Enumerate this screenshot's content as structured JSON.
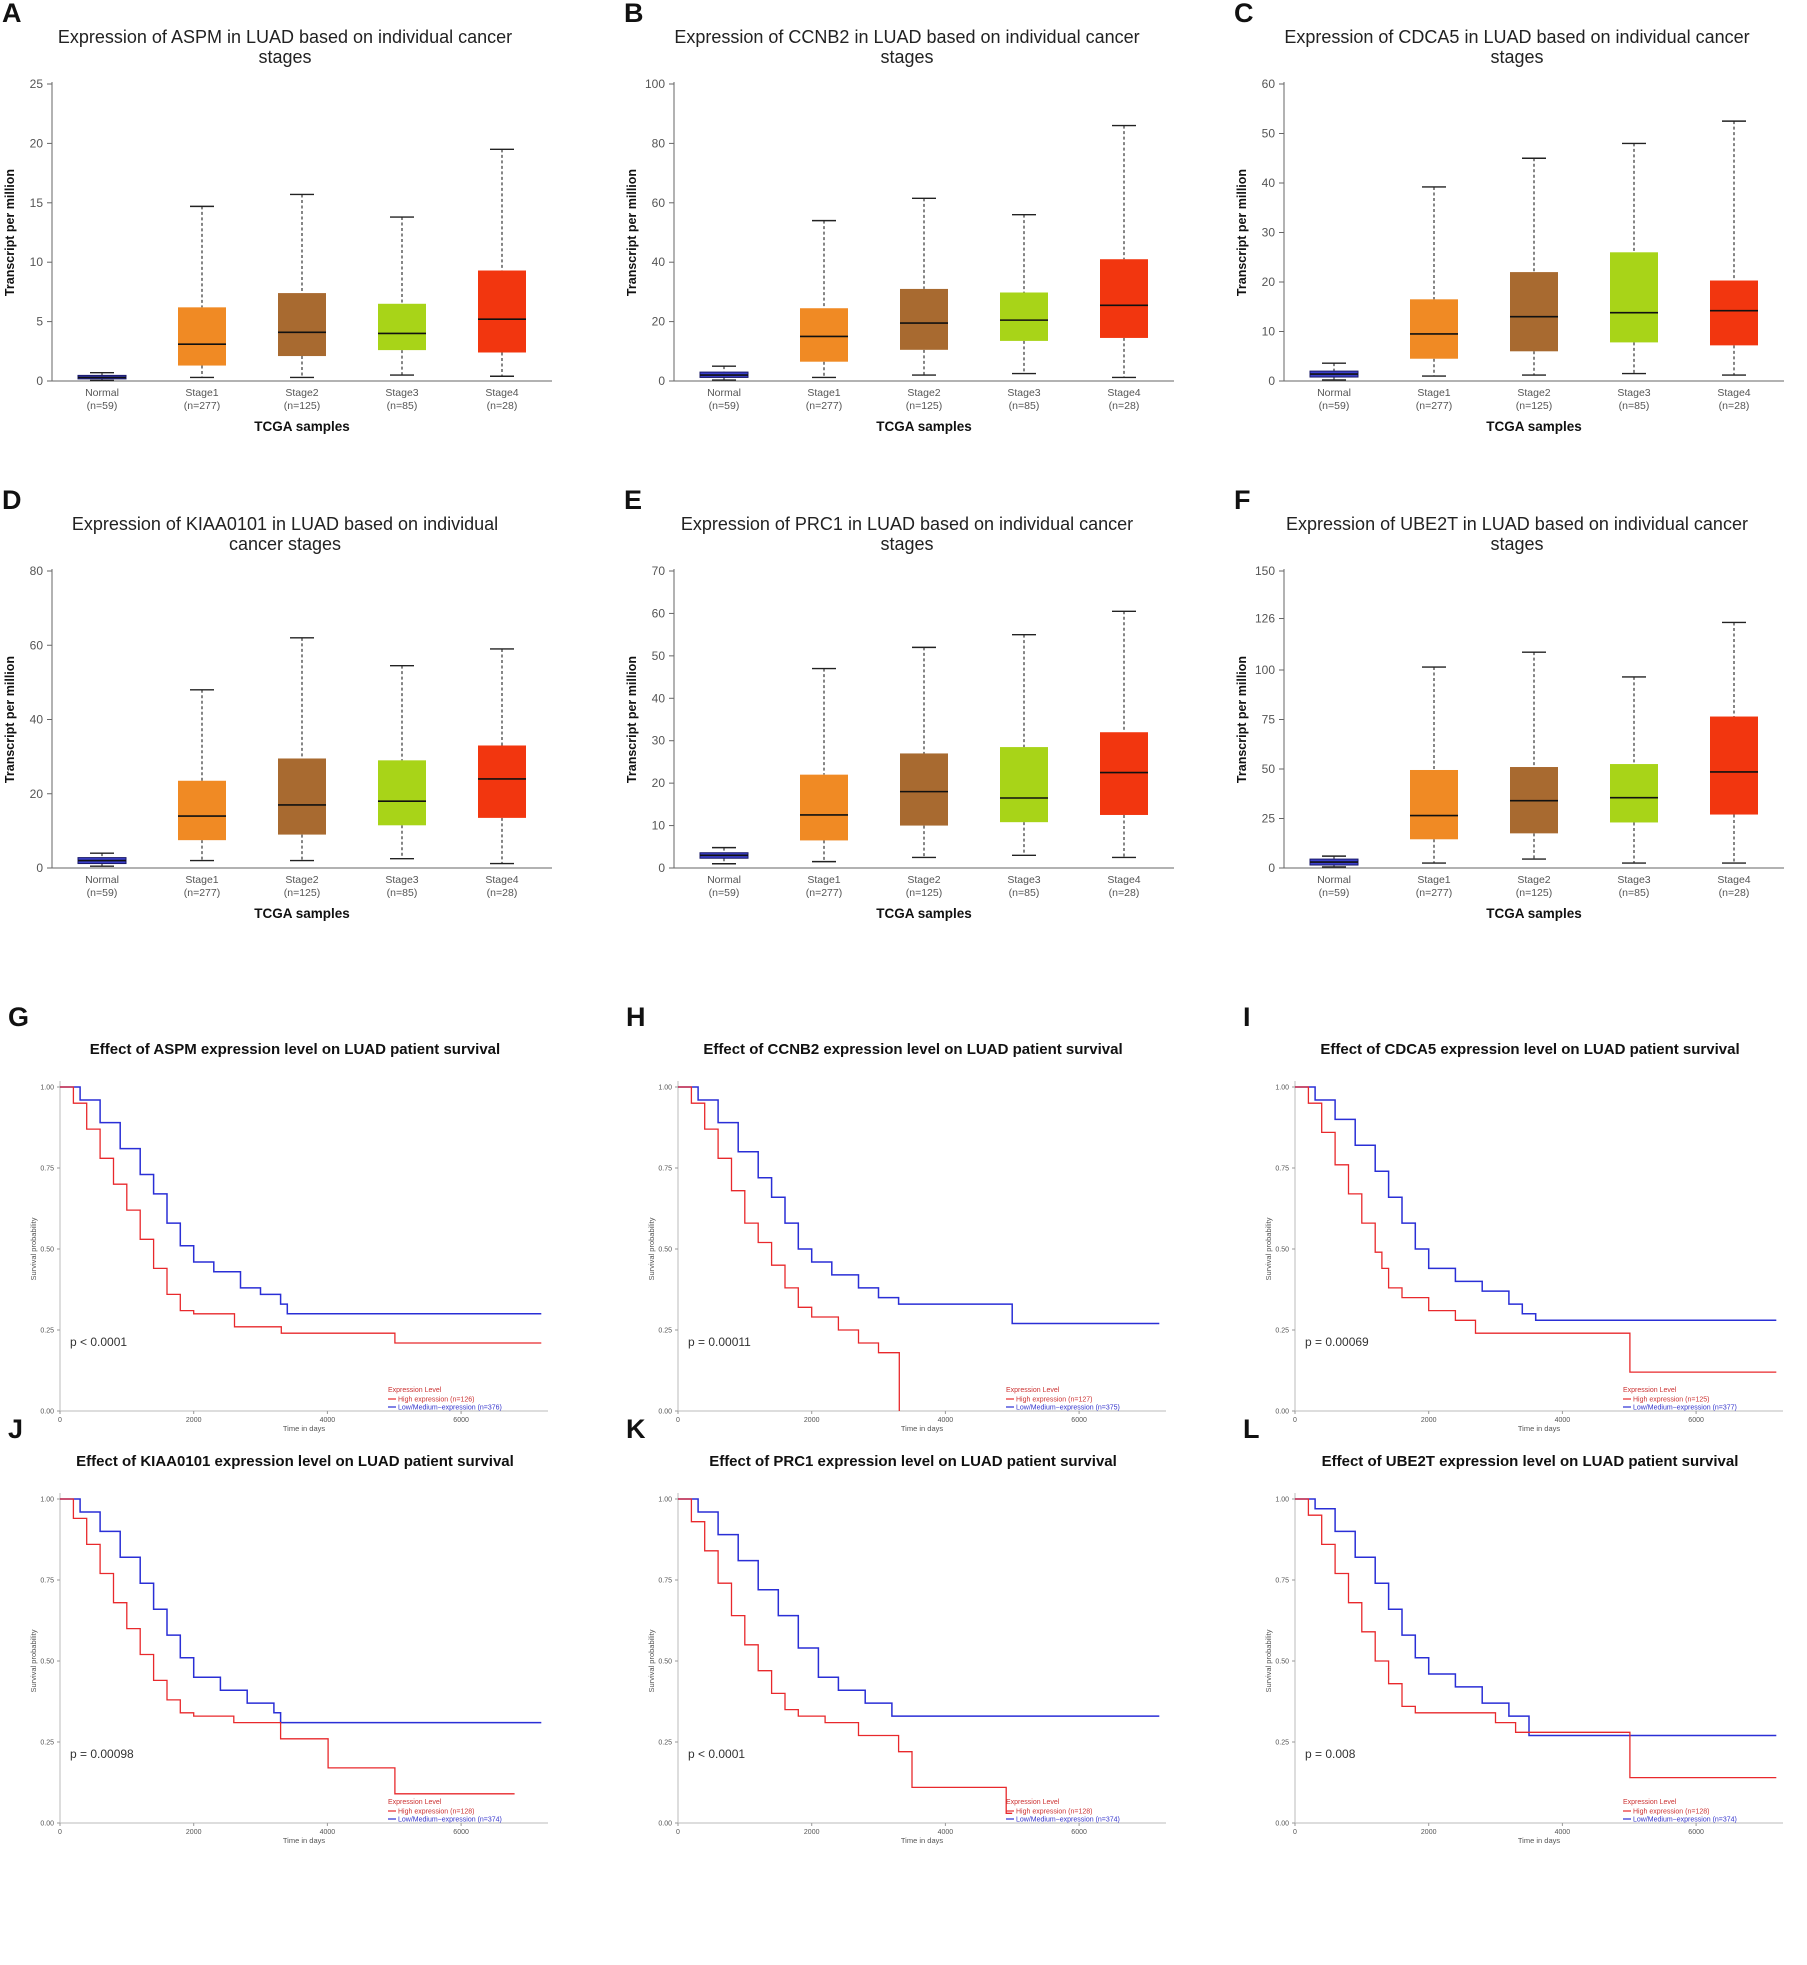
{
  "box_meta": {
    "categories": [
      "Normal",
      "Stage1",
      "Stage2",
      "Stage3",
      "Stage4"
    ],
    "counts": [
      "(n=59)",
      "(n=277)",
      "(n=125)",
      "(n=85)",
      "(n=28)"
    ],
    "colors": [
      "#3B3FC9",
      "#F08A24",
      "#A86A30",
      "#A8D418",
      "#F2360F"
    ],
    "xlabel": "TCGA samples",
    "ylabel": "Transcript per million"
  },
  "km_meta": {
    "xlabel": "Time in days",
    "ylabel": "Survival probability",
    "legend_title": "Expression Level",
    "high_color": "#E8292C",
    "low_color": "#2A2FD6",
    "xticks": [
      0,
      2000,
      4000,
      6000
    ],
    "yticks": [
      "0.00",
      "0.25",
      "0.50",
      "0.75",
      "1.00"
    ]
  },
  "chart_data": [
    {
      "panel": "A",
      "type": "box",
      "title": [
        "Expression of ASPM in LUAD based on individual cancer",
        "stages"
      ],
      "ylim": [
        0,
        25
      ],
      "yticks": [
        0,
        5,
        10,
        15,
        20,
        25
      ],
      "boxes": [
        {
          "min": 0.05,
          "q1": 0.2,
          "median": 0.3,
          "q3": 0.45,
          "max": 0.7
        },
        {
          "min": 0.3,
          "q1": 1.3,
          "median": 3.1,
          "q3": 6.2,
          "max": 14.7
        },
        {
          "min": 0.3,
          "q1": 2.1,
          "median": 4.1,
          "q3": 7.4,
          "max": 15.7
        },
        {
          "min": 0.5,
          "q1": 2.6,
          "median": 4.0,
          "q3": 6.5,
          "max": 13.8
        },
        {
          "min": 0.4,
          "q1": 2.4,
          "median": 5.2,
          "q3": 9.3,
          "max": 19.5
        }
      ]
    },
    {
      "panel": "B",
      "type": "box",
      "title": [
        "Expression of CCNB2 in LUAD based on individual cancer",
        "stages"
      ],
      "ylim": [
        0,
        100
      ],
      "yticks": [
        0,
        20,
        40,
        60,
        80,
        100
      ],
      "boxes": [
        {
          "min": 0.3,
          "q1": 1.2,
          "median": 2.0,
          "q3": 3.0,
          "max": 5.0
        },
        {
          "min": 1.2,
          "q1": 6.5,
          "median": 15.0,
          "q3": 24.5,
          "max": 54.0
        },
        {
          "min": 2.0,
          "q1": 10.5,
          "median": 19.5,
          "q3": 31.0,
          "max": 61.5
        },
        {
          "min": 2.5,
          "q1": 13.5,
          "median": 20.5,
          "q3": 29.8,
          "max": 56.0
        },
        {
          "min": 1.2,
          "q1": 14.5,
          "median": 25.5,
          "q3": 41.0,
          "max": 86.0
        }
      ]
    },
    {
      "panel": "C",
      "type": "box",
      "title": [
        "Expression of CDCA5 in LUAD based on individual cancer",
        "stages"
      ],
      "ylim": [
        0,
        60
      ],
      "yticks": [
        0,
        10,
        20,
        30,
        40,
        50,
        60
      ],
      "boxes": [
        {
          "min": 0.2,
          "q1": 0.8,
          "median": 1.4,
          "q3": 2.0,
          "max": 3.6
        },
        {
          "min": 1.0,
          "q1": 4.5,
          "median": 9.5,
          "q3": 16.5,
          "max": 39.2
        },
        {
          "min": 1.2,
          "q1": 6.0,
          "median": 13.0,
          "q3": 22.0,
          "max": 45.0
        },
        {
          "min": 1.5,
          "q1": 7.8,
          "median": 13.8,
          "q3": 26.0,
          "max": 48.0
        },
        {
          "min": 1.2,
          "q1": 7.2,
          "median": 14.2,
          "q3": 20.3,
          "max": 52.5
        }
      ]
    },
    {
      "panel": "D",
      "type": "box",
      "title": [
        "Expression of KIAA0101 in LUAD based on individual",
        "cancer stages"
      ],
      "ylim": [
        0,
        80
      ],
      "yticks": [
        0,
        20,
        40,
        60,
        80
      ],
      "boxes": [
        {
          "min": 0.5,
          "q1": 1.2,
          "median": 2.0,
          "q3": 2.8,
          "max": 4.0
        },
        {
          "min": 2.0,
          "q1": 7.5,
          "median": 14.0,
          "q3": 23.5,
          "max": 48.0
        },
        {
          "min": 2.0,
          "q1": 9.0,
          "median": 17.0,
          "q3": 29.5,
          "max": 62.0
        },
        {
          "min": 2.5,
          "q1": 11.5,
          "median": 18.0,
          "q3": 29.0,
          "max": 54.5
        },
        {
          "min": 1.2,
          "q1": 13.5,
          "median": 24.0,
          "q3": 33.0,
          "max": 59.0
        }
      ]
    },
    {
      "panel": "E",
      "type": "box",
      "title": [
        "Expression of PRC1 in LUAD based on individual cancer",
        "stages"
      ],
      "ylim": [
        0,
        70
      ],
      "yticks": [
        0,
        10,
        20,
        30,
        40,
        50,
        60,
        70
      ],
      "boxes": [
        {
          "min": 1.0,
          "q1": 2.3,
          "median": 3.0,
          "q3": 3.6,
          "max": 4.8
        },
        {
          "min": 1.5,
          "q1": 6.5,
          "median": 12.5,
          "q3": 22.0,
          "max": 47.0
        },
        {
          "min": 2.5,
          "q1": 10.0,
          "median": 18.0,
          "q3": 27.0,
          "max": 52.0
        },
        {
          "min": 3.0,
          "q1": 10.8,
          "median": 16.5,
          "q3": 28.5,
          "max": 55.0
        },
        {
          "min": 2.5,
          "q1": 12.5,
          "median": 22.5,
          "q3": 32.0,
          "max": 60.5
        }
      ]
    },
    {
      "panel": "F",
      "type": "box",
      "title": [
        "Expression of UBE2T in LUAD based on individual cancer",
        "stages"
      ],
      "ylim": [
        0,
        150
      ],
      "yticks": [
        0,
        25,
        50,
        75,
        100,
        126,
        150
      ],
      "boxes": [
        {
          "min": 0.5,
          "q1": 1.5,
          "median": 3.0,
          "q3": 4.5,
          "max": 6.0
        },
        {
          "min": 2.5,
          "q1": 14.5,
          "median": 26.5,
          "q3": 49.5,
          "max": 101.5
        },
        {
          "min": 4.5,
          "q1": 17.5,
          "median": 34.0,
          "q3": 51.0,
          "max": 109.0
        },
        {
          "min": 2.5,
          "q1": 23.0,
          "median": 35.5,
          "q3": 52.5,
          "max": 96.5
        },
        {
          "min": 2.5,
          "q1": 27.0,
          "median": 48.5,
          "q3": 76.5,
          "max": 124.0
        }
      ]
    },
    {
      "panel": "G",
      "type": "line",
      "title": "Effect of ASPM expression level on LUAD patient survival",
      "pvalue": "p < 0.0001",
      "xlim": [
        0,
        7300
      ],
      "ylim": [
        0,
        1
      ],
      "high_label": "High expression (n=126)",
      "low_label": "Low/Medium−expression (n=376)",
      "high": [
        [
          0,
          1.0
        ],
        [
          200,
          0.95
        ],
        [
          400,
          0.87
        ],
        [
          600,
          0.78
        ],
        [
          800,
          0.7
        ],
        [
          1000,
          0.62
        ],
        [
          1200,
          0.53
        ],
        [
          1400,
          0.44
        ],
        [
          1600,
          0.36
        ],
        [
          1800,
          0.31
        ],
        [
          2000,
          0.3
        ],
        [
          2600,
          0.3
        ],
        [
          2610,
          0.26
        ],
        [
          3300,
          0.26
        ],
        [
          3310,
          0.24
        ],
        [
          5000,
          0.24
        ],
        [
          5010,
          0.21
        ],
        [
          7200,
          0.21
        ]
      ],
      "low": [
        [
          0,
          1.0
        ],
        [
          300,
          0.96
        ],
        [
          600,
          0.89
        ],
        [
          900,
          0.81
        ],
        [
          1200,
          0.73
        ],
        [
          1400,
          0.67
        ],
        [
          1600,
          0.58
        ],
        [
          1800,
          0.51
        ],
        [
          2000,
          0.46
        ],
        [
          2300,
          0.43
        ],
        [
          2700,
          0.38
        ],
        [
          3000,
          0.36
        ],
        [
          3300,
          0.33
        ],
        [
          3400,
          0.3
        ],
        [
          7200,
          0.3
        ]
      ]
    },
    {
      "panel": "H",
      "type": "line",
      "title": "Effect of CCNB2 expression level on LUAD patient survival",
      "pvalue": "p = 0.00011",
      "xlim": [
        0,
        7300
      ],
      "ylim": [
        0,
        1
      ],
      "high_label": "High expression (n=127)",
      "low_label": "Low/Medium−expression (n=375)",
      "high": [
        [
          0,
          1.0
        ],
        [
          200,
          0.95
        ],
        [
          400,
          0.87
        ],
        [
          600,
          0.78
        ],
        [
          800,
          0.68
        ],
        [
          1000,
          0.58
        ],
        [
          1200,
          0.52
        ],
        [
          1400,
          0.45
        ],
        [
          1600,
          0.38
        ],
        [
          1800,
          0.32
        ],
        [
          2000,
          0.29
        ],
        [
          2300,
          0.29
        ],
        [
          2400,
          0.25
        ],
        [
          2700,
          0.21
        ],
        [
          3000,
          0.18
        ],
        [
          3300,
          0.18
        ],
        [
          3310,
          0.0
        ]
      ],
      "low": [
        [
          0,
          1.0
        ],
        [
          300,
          0.96
        ],
        [
          600,
          0.89
        ],
        [
          900,
          0.8
        ],
        [
          1200,
          0.72
        ],
        [
          1400,
          0.66
        ],
        [
          1600,
          0.58
        ],
        [
          1800,
          0.5
        ],
        [
          2000,
          0.46
        ],
        [
          2300,
          0.42
        ],
        [
          2700,
          0.38
        ],
        [
          3000,
          0.35
        ],
        [
          3300,
          0.33
        ],
        [
          4900,
          0.33
        ],
        [
          5000,
          0.27
        ],
        [
          7200,
          0.27
        ]
      ]
    },
    {
      "panel": "I",
      "type": "line",
      "title": "Effect of CDCA5 expression level on LUAD patient survival",
      "pvalue": "p = 0.00069",
      "xlim": [
        0,
        7300
      ],
      "ylim": [
        0,
        1
      ],
      "high_label": "High expression (n=125)",
      "low_label": "Low/Medium−expression (n=377)",
      "high": [
        [
          0,
          1.0
        ],
        [
          200,
          0.95
        ],
        [
          400,
          0.86
        ],
        [
          600,
          0.76
        ],
        [
          800,
          0.67
        ],
        [
          1000,
          0.58
        ],
        [
          1200,
          0.49
        ],
        [
          1300,
          0.44
        ],
        [
          1400,
          0.38
        ],
        [
          1600,
          0.35
        ],
        [
          2000,
          0.31
        ],
        [
          2400,
          0.28
        ],
        [
          2700,
          0.24
        ],
        [
          3200,
          0.24
        ],
        [
          5000,
          0.24
        ],
        [
          5010,
          0.12
        ],
        [
          7200,
          0.12
        ]
      ],
      "low": [
        [
          0,
          1.0
        ],
        [
          300,
          0.96
        ],
        [
          600,
          0.9
        ],
        [
          900,
          0.82
        ],
        [
          1200,
          0.74
        ],
        [
          1400,
          0.66
        ],
        [
          1600,
          0.58
        ],
        [
          1800,
          0.5
        ],
        [
          2000,
          0.44
        ],
        [
          2400,
          0.4
        ],
        [
          2800,
          0.37
        ],
        [
          3200,
          0.33
        ],
        [
          3400,
          0.3
        ],
        [
          3600,
          0.28
        ],
        [
          7200,
          0.28
        ]
      ]
    },
    {
      "panel": "J",
      "type": "line",
      "title": "Effect of KIAA0101 expression level on LUAD patient survival",
      "pvalue": "p = 0.00098",
      "xlim": [
        0,
        7300
      ],
      "ylim": [
        0,
        1
      ],
      "high_label": "High expression (n=128)",
      "low_label": "Low/Medium−expression (n=374)",
      "high": [
        [
          0,
          1.0
        ],
        [
          200,
          0.94
        ],
        [
          400,
          0.86
        ],
        [
          600,
          0.77
        ],
        [
          800,
          0.68
        ],
        [
          1000,
          0.6
        ],
        [
          1200,
          0.52
        ],
        [
          1400,
          0.44
        ],
        [
          1600,
          0.38
        ],
        [
          1800,
          0.34
        ],
        [
          2000,
          0.33
        ],
        [
          2600,
          0.31
        ],
        [
          3300,
          0.26
        ],
        [
          4000,
          0.26
        ],
        [
          4010,
          0.17
        ],
        [
          5000,
          0.17
        ],
        [
          5010,
          0.09
        ],
        [
          6800,
          0.09
        ]
      ],
      "low": [
        [
          0,
          1.0
        ],
        [
          300,
          0.96
        ],
        [
          600,
          0.9
        ],
        [
          900,
          0.82
        ],
        [
          1200,
          0.74
        ],
        [
          1400,
          0.66
        ],
        [
          1600,
          0.58
        ],
        [
          1800,
          0.51
        ],
        [
          2000,
          0.45
        ],
        [
          2400,
          0.41
        ],
        [
          2800,
          0.37
        ],
        [
          3200,
          0.34
        ],
        [
          3300,
          0.31
        ],
        [
          7200,
          0.31
        ]
      ]
    },
    {
      "panel": "K",
      "type": "line",
      "title": "Effect of PRC1 expression level on LUAD patient survival",
      "pvalue": "p < 0.0001",
      "xlim": [
        0,
        7300
      ],
      "ylim": [
        0,
        1
      ],
      "high_label": "High expression (n=128)",
      "low_label": "Low/Medium−expression (n=374)",
      "high": [
        [
          0,
          1.0
        ],
        [
          200,
          0.93
        ],
        [
          400,
          0.84
        ],
        [
          600,
          0.74
        ],
        [
          800,
          0.64
        ],
        [
          1000,
          0.55
        ],
        [
          1200,
          0.47
        ],
        [
          1400,
          0.4
        ],
        [
          1600,
          0.35
        ],
        [
          1800,
          0.33
        ],
        [
          2200,
          0.31
        ],
        [
          2700,
          0.27
        ],
        [
          3300,
          0.22
        ],
        [
          3400,
          0.22
        ],
        [
          3500,
          0.11
        ],
        [
          4900,
          0.11
        ],
        [
          4910,
          0.03
        ],
        [
          5000,
          0.03
        ]
      ],
      "low": [
        [
          0,
          1.0
        ],
        [
          300,
          0.96
        ],
        [
          600,
          0.89
        ],
        [
          900,
          0.81
        ],
        [
          1200,
          0.72
        ],
        [
          1500,
          0.64
        ],
        [
          1800,
          0.54
        ],
        [
          2100,
          0.45
        ],
        [
          2400,
          0.41
        ],
        [
          2800,
          0.37
        ],
        [
          3200,
          0.33
        ],
        [
          7200,
          0.33
        ]
      ]
    },
    {
      "panel": "L",
      "type": "line",
      "title": "Effect of UBE2T expression level on LUAD patient survival",
      "pvalue": "p = 0.008",
      "xlim": [
        0,
        7300
      ],
      "ylim": [
        0,
        1
      ],
      "high_label": "High expression (n=128)",
      "low_label": "Low/Medium−expression (n=374)",
      "high": [
        [
          0,
          1.0
        ],
        [
          200,
          0.95
        ],
        [
          400,
          0.86
        ],
        [
          600,
          0.77
        ],
        [
          800,
          0.68
        ],
        [
          1000,
          0.59
        ],
        [
          1200,
          0.5
        ],
        [
          1400,
          0.43
        ],
        [
          1600,
          0.36
        ],
        [
          1800,
          0.34
        ],
        [
          2400,
          0.34
        ],
        [
          3000,
          0.31
        ],
        [
          3300,
          0.28
        ],
        [
          4000,
          0.28
        ],
        [
          5000,
          0.28
        ],
        [
          5010,
          0.14
        ],
        [
          7200,
          0.14
        ]
      ],
      "low": [
        [
          0,
          1.0
        ],
        [
          300,
          0.97
        ],
        [
          600,
          0.9
        ],
        [
          900,
          0.82
        ],
        [
          1200,
          0.74
        ],
        [
          1400,
          0.66
        ],
        [
          1600,
          0.58
        ],
        [
          1800,
          0.51
        ],
        [
          2000,
          0.46
        ],
        [
          2400,
          0.42
        ],
        [
          2800,
          0.37
        ],
        [
          3200,
          0.33
        ],
        [
          3500,
          0.27
        ],
        [
          4000,
          0.27
        ],
        [
          7200,
          0.27
        ]
      ]
    }
  ]
}
